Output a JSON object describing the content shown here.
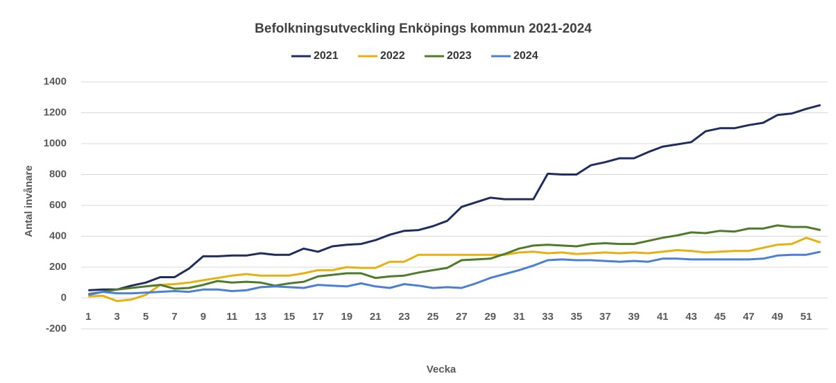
{
  "chart_data": {
    "type": "line",
    "title": "Befolkningsutveckling Enköpings kommun 2021-2024",
    "x_label": "Vecka",
    "y_label": "Antal invånare",
    "categories": [
      1,
      null,
      3,
      null,
      5,
      null,
      7,
      null,
      9,
      null,
      11,
      null,
      13,
      null,
      15,
      null,
      17,
      null,
      19,
      null,
      21,
      null,
      23,
      null,
      25,
      null,
      27,
      null,
      29,
      null,
      31,
      null,
      33,
      null,
      35,
      null,
      37,
      null,
      39,
      null,
      41,
      null,
      43,
      null,
      45,
      null,
      47,
      null,
      49,
      null,
      51,
      null
    ],
    "ylim": [
      -200,
      1400
    ],
    "yticks": [
      -200,
      0,
      200,
      400,
      600,
      800,
      1000,
      1200,
      1400
    ],
    "grid": true,
    "legend": "top",
    "series": [
      {
        "name": "2021",
        "color": "#1f2d5c",
        "values": [
          50,
          55,
          55,
          80,
          100,
          135,
          135,
          190,
          270,
          270,
          275,
          275,
          290,
          280,
          280,
          320,
          300,
          335,
          345,
          350,
          375,
          410,
          435,
          440,
          465,
          500,
          590,
          620,
          650,
          640,
          640,
          640,
          805,
          800,
          800,
          860,
          880,
          905,
          905,
          945,
          980,
          995,
          1010,
          1080,
          1100,
          1100,
          1120,
          1135,
          1185,
          1195,
          1225,
          1250
        ]
      },
      {
        "name": "2022",
        "color": "#e6b011",
        "values": [
          10,
          15,
          -20,
          -10,
          20,
          85,
          90,
          100,
          115,
          130,
          145,
          155,
          145,
          145,
          145,
          160,
          180,
          180,
          200,
          195,
          195,
          235,
          235,
          280,
          280,
          280,
          280,
          280,
          280,
          280,
          295,
          300,
          290,
          295,
          285,
          290,
          295,
          290,
          295,
          290,
          300,
          310,
          305,
          295,
          300,
          305,
          305,
          325,
          345,
          350,
          390,
          360
        ]
      },
      {
        "name": "2023",
        "color": "#4e7a2a",
        "values": [
          25,
          40,
          55,
          65,
          75,
          85,
          60,
          65,
          85,
          110,
          100,
          105,
          100,
          80,
          95,
          105,
          140,
          150,
          160,
          160,
          130,
          140,
          145,
          165,
          180,
          195,
          245,
          250,
          255,
          285,
          320,
          340,
          345,
          340,
          335,
          350,
          355,
          350,
          350,
          370,
          390,
          405,
          425,
          420,
          435,
          430,
          450,
          450,
          470,
          460,
          460,
          440
        ]
      },
      {
        "name": "2024",
        "color": "#4a7fd4",
        "values": [
          20,
          40,
          30,
          30,
          35,
          40,
          45,
          40,
          55,
          55,
          45,
          50,
          70,
          75,
          70,
          65,
          85,
          80,
          75,
          95,
          75,
          65,
          90,
          80,
          65,
          70,
          65,
          95,
          130,
          155,
          180,
          210,
          245,
          250,
          245,
          245,
          240,
          235,
          240,
          235,
          255,
          255,
          250,
          250,
          250,
          250,
          250,
          255,
          275,
          280,
          280,
          300
        ]
      }
    ]
  }
}
